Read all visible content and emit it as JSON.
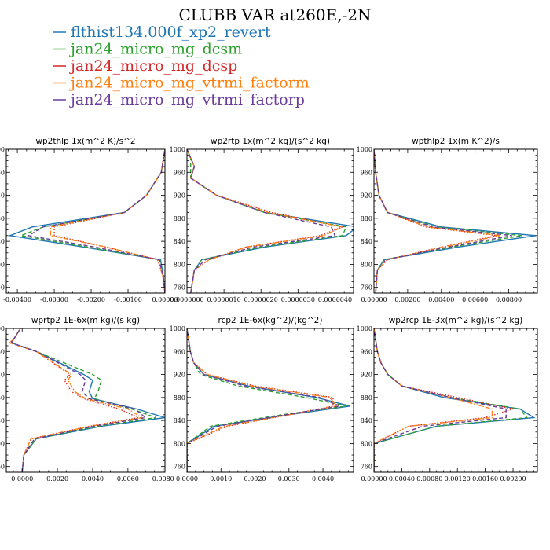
{
  "chart_data": {
    "title": "CLUBB VAR at260E,-2N",
    "legend": [
      {
        "name": "flthist134.000f_xp2_revert",
        "color": "#1f77b4",
        "dash": "solid"
      },
      {
        "name": "jan24_micro_mg_dcsm",
        "color": "#2ca02c",
        "dash": "dash"
      },
      {
        "name": "jan24_micro_mg_dcsp",
        "color": "#d62728",
        "dash": "dot"
      },
      {
        "name": "jan24_micro_mg_vtrmi_factorm",
        "color": "#ff7f0e",
        "dash": "dashdot"
      },
      {
        "name": "jan24_micro_mg_vtrmi_factorp",
        "color": "#6a3d9a",
        "dash": "dash"
      }
    ],
    "panels": [
      {
        "title": "wp2thlp  1x(m^2 K)/s^2",
        "type": "line",
        "xlim": [
          -0.0043,
          0.0
        ],
        "ylim": [
          1000,
          750
        ],
        "xticks": [
          -0.004,
          -0.003,
          -0.002,
          -0.001,
          0.0
        ],
        "xtick_labels": [
          "-0.00400",
          "-0.00300",
          "-0.00200",
          "-0.00100",
          "0.00000"
        ],
        "yticks": [
          760,
          800,
          840,
          880,
          920,
          960,
          1000
        ],
        "levels": [
          750,
          780,
          808,
          830,
          850,
          865,
          890,
          920,
          960,
          1000
        ],
        "series": [
          {
            "name": "flthist134.000f_xp2_revert",
            "values": [
              -0.0,
              -5e-05,
              -0.00012,
              -0.0022,
              -0.0042,
              -0.0036,
              -0.0011,
              -0.0005,
              -0.0001,
              0.0
            ]
          },
          {
            "name": "jan24_micro_mg_dcsm",
            "values": [
              -0.0,
              -5e-05,
              -0.00014,
              -0.0021,
              -0.0039,
              -0.0033,
              -0.0011,
              -0.0005,
              -0.0001,
              0.0
            ]
          },
          {
            "name": "jan24_micro_mg_dcsp",
            "values": [
              -0.0,
              -6e-05,
              -0.0002,
              -0.0016,
              -0.003,
              -0.003,
              -0.0011,
              -0.0005,
              -0.0001,
              0.0
            ]
          },
          {
            "name": "jan24_micro_mg_vtrmi_factorm",
            "values": [
              -0.0,
              -6e-05,
              -0.00019,
              -0.0016,
              -0.0031,
              -0.0031,
              -0.0011,
              -0.0005,
              -0.0001,
              0.0
            ]
          },
          {
            "name": "jan24_micro_mg_vtrmi_factorp",
            "values": [
              -0.0,
              -5e-05,
              -0.00016,
              -0.0019,
              -0.0037,
              -0.0033,
              -0.0011,
              -0.0005,
              -0.0001,
              0.0
            ]
          }
        ]
      },
      {
        "title": "wp2rtp  1x(m^2 kg)/(s^2 kg)",
        "type": "line",
        "xlim": [
          0.0,
          4.5e-06
        ],
        "ylim": [
          1000,
          750
        ],
        "xticks": [
          0.0,
          1e-06,
          2e-06,
          3e-06,
          4e-06
        ],
        "xtick_labels": [
          "0.0000000",
          "0.0000010",
          "0.0000020",
          "0.0000030",
          "0.0000040"
        ],
        "yticks": [
          760,
          800,
          840,
          880,
          920,
          960,
          1000
        ],
        "levels": [
          750,
          790,
          808,
          830,
          850,
          865,
          890,
          920,
          950,
          970,
          985,
          1000
        ],
        "series": [
          {
            "name": "flthist134.000f_xp2_revert",
            "values": [
              1e-07,
              2e-07,
              4e-07,
              2.1e-06,
              4.3e-06,
              4.6e-06,
              2.1e-06,
              8e-07,
              1e-07,
              2e-07,
              1e-07,
              0.0
            ]
          },
          {
            "name": "jan24_micro_mg_dcsm",
            "values": [
              1e-07,
              2e-07,
              4e-07,
              2e-06,
              4.2e-06,
              4.3e-06,
              2.1e-06,
              8e-07,
              1e-07,
              1e-07,
              1e-07,
              0.0
            ]
          },
          {
            "name": "jan24_micro_mg_dcsp",
            "values": [
              1e-07,
              2e-07,
              6e-07,
              1.6e-06,
              3.6e-06,
              4.2e-06,
              2.3e-06,
              8e-07,
              1e-07,
              2e-07,
              1e-07,
              0.0
            ]
          },
          {
            "name": "jan24_micro_mg_vtrmi_factorm",
            "values": [
              1e-07,
              2e-07,
              6e-07,
              1.6e-06,
              3.7e-06,
              4.2e-06,
              2.2e-06,
              8e-07,
              1e-07,
              2e-07,
              1e-07,
              0.0
            ]
          },
          {
            "name": "jan24_micro_mg_vtrmi_factorp",
            "values": [
              1e-07,
              2e-07,
              5e-07,
              1.8e-06,
              4e-06,
              3.9e-06,
              2.1e-06,
              8e-07,
              1e-07,
              2e-07,
              1e-07,
              0.0
            ]
          }
        ]
      },
      {
        "title": "wpthlp2  1x(m K^2)/s",
        "type": "line",
        "xlim": [
          0.0,
          0.0097
        ],
        "ylim": [
          1000,
          750
        ],
        "xticks": [
          0.0,
          0.002,
          0.004,
          0.006,
          0.008
        ],
        "xtick_labels": [
          "0.00000",
          "0.00200",
          "0.00400",
          "0.00600",
          "0.00800"
        ],
        "yticks": [
          760,
          800,
          840,
          880,
          920,
          960,
          1000
        ],
        "levels": [
          750,
          790,
          808,
          830,
          850,
          865,
          890,
          920,
          960,
          1000
        ],
        "series": [
          {
            "name": "flthist134.000f_xp2_revert",
            "values": [
              0.0001,
              0.0002,
              0.0006,
              0.005,
              0.0096,
              0.004,
              0.0008,
              0.0003,
              0.0001,
              0.0
            ]
          },
          {
            "name": "jan24_micro_mg_dcsm",
            "values": [
              0.0001,
              0.0002,
              0.0006,
              0.0046,
              0.0088,
              0.0037,
              0.0008,
              0.0003,
              0.0001,
              0.0
            ]
          },
          {
            "name": "jan24_micro_mg_dcsp",
            "values": [
              0.0001,
              0.0002,
              0.0008,
              0.004,
              0.0073,
              0.0031,
              0.0008,
              0.0003,
              0.0001,
              0.0
            ]
          },
          {
            "name": "jan24_micro_mg_vtrmi_factorm",
            "values": [
              0.0001,
              0.0002,
              0.0008,
              0.0041,
              0.0075,
              0.0032,
              0.0008,
              0.0003,
              0.0001,
              0.0
            ]
          },
          {
            "name": "jan24_micro_mg_vtrmi_factorp",
            "values": [
              0.0001,
              0.0002,
              0.0007,
              0.0044,
              0.0082,
              0.0035,
              0.0008,
              0.0003,
              0.0001,
              0.0
            ]
          }
        ]
      },
      {
        "title": "wprtp2  1E-6x(m kg)/(s kg)",
        "type": "line",
        "xlim": [
          -0.0009,
          0.0081
        ],
        "ylim": [
          1000,
          750
        ],
        "xticks": [
          0.0,
          0.002,
          0.004,
          0.006,
          0.008
        ],
        "xtick_labels": [
          "0.0000",
          "0.0020",
          "0.0040",
          "0.0060",
          "0.0080"
        ],
        "yticks": [
          760,
          800,
          840,
          880,
          920,
          960,
          1000
        ],
        "levels": [
          750,
          780,
          808,
          830,
          845,
          860,
          878,
          890,
          910,
          920,
          960,
          975,
          985,
          1000
        ],
        "series": [
          {
            "name": "flthist134.000f_xp2_revert",
            "values": [
              0.0,
              0.0001,
              0.0008,
              0.0045,
              0.0081,
              0.0065,
              0.004,
              0.0038,
              0.004,
              0.0035,
              0.0008,
              -0.0006,
              -0.0004,
              -0.0001
            ]
          },
          {
            "name": "jan24_micro_mg_dcsm",
            "values": [
              0.0,
              0.0001,
              0.0008,
              0.0043,
              0.0076,
              0.0062,
              0.0041,
              0.0043,
              0.0045,
              0.004,
              0.0008,
              -0.0006,
              -0.0004,
              -0.0001
            ]
          },
          {
            "name": "jan24_micro_mg_dcsp",
            "values": [
              0.0,
              0.0001,
              0.0005,
              0.0038,
              0.0066,
              0.0055,
              0.0035,
              0.0028,
              0.0024,
              0.0027,
              0.0008,
              -0.0007,
              -0.0004,
              -0.0001
            ]
          },
          {
            "name": "jan24_micro_mg_vtrmi_factorm",
            "values": [
              0.0,
              0.0001,
              0.0005,
              0.0039,
              0.0068,
              0.006,
              0.0036,
              0.003,
              0.0026,
              0.0028,
              0.0008,
              -0.0007,
              -0.0004,
              -0.0001
            ]
          },
          {
            "name": "jan24_micro_mg_vtrmi_factorp",
            "values": [
              0.0,
              0.0001,
              0.0007,
              0.0041,
              0.007,
              0.0064,
              0.0038,
              0.0034,
              0.0036,
              0.0033,
              0.0008,
              -0.0006,
              -0.0004,
              -0.0001
            ]
          }
        ]
      },
      {
        "title": "rcp2  1E-6x(kg^2)/(kg^2)",
        "type": "line",
        "xlim": [
          0.0,
          0.0049
        ],
        "ylim": [
          1000,
          750
        ],
        "xticks": [
          0.0,
          0.001,
          0.002,
          0.003,
          0.004
        ],
        "xtick_labels": [
          "0.0000",
          "0.0010",
          "0.0020",
          "0.0030",
          "0.0040"
        ],
        "yticks": [
          760,
          800,
          840,
          880,
          920,
          960,
          1000
        ],
        "levels": [
          750,
          800,
          830,
          850,
          865,
          880,
          900,
          920,
          940,
          960,
          1000
        ],
        "series": [
          {
            "name": "flthist134.000f_xp2_revert",
            "values": [
              0.0,
              0.0,
              0.0008,
              0.003,
              0.0048,
              0.0038,
              0.0018,
              0.0005,
              0.0002,
              0.0001,
              0.0
            ]
          },
          {
            "name": "jan24_micro_mg_dcsm",
            "values": [
              0.0,
              0.0,
              0.0007,
              0.0028,
              0.0047,
              0.0035,
              0.0015,
              0.0004,
              0.0002,
              0.0001,
              0.0
            ]
          },
          {
            "name": "jan24_micro_mg_dcsp",
            "values": [
              0.0,
              0.0,
              0.0012,
              0.003,
              0.0043,
              0.0043,
              0.002,
              0.0006,
              0.0002,
              0.0001,
              0.0
            ]
          },
          {
            "name": "jan24_micro_mg_vtrmi_factorm",
            "values": [
              0.0,
              0.0,
              0.0011,
              0.003,
              0.0044,
              0.0042,
              0.0019,
              0.0006,
              0.0002,
              0.0001,
              0.0
            ]
          },
          {
            "name": "jan24_micro_mg_vtrmi_factorp",
            "values": [
              0.0,
              0.0,
              0.0009,
              0.0029,
              0.0045,
              0.0039,
              0.0017,
              0.0005,
              0.0002,
              0.0001,
              0.0
            ]
          }
        ]
      },
      {
        "title": "wp2rcp  1E-3x(m^2 kg)/(s^2 kg)",
        "type": "line",
        "xlim": [
          0.0,
          0.00235
        ],
        "ylim": [
          1000,
          750
        ],
        "xticks": [
          0.0,
          0.0004,
          0.0008,
          0.0012,
          0.0016,
          0.002
        ],
        "xtick_labels": [
          "0.00000",
          "0.00040",
          "0.00080",
          "0.00120",
          "0.00160",
          "0.00200"
        ],
        "yticks": [
          760,
          800,
          840,
          880,
          920,
          960,
          1000
        ],
        "levels": [
          750,
          800,
          830,
          845,
          860,
          880,
          900,
          920,
          940,
          960,
          1000
        ],
        "series": [
          {
            "name": "flthist134.000f_xp2_revert",
            "values": [
              0.0,
              0.0,
              0.0009,
              0.0023,
              0.0021,
              0.001,
              0.0004,
              0.0002,
              0.0001,
              5e-05,
              0.0
            ]
          },
          {
            "name": "jan24_micro_mg_dcsm",
            "values": [
              0.0,
              0.0,
              0.0009,
              0.0022,
              0.0021,
              0.0011,
              0.0004,
              0.0002,
              0.0001,
              5e-05,
              0.0
            ]
          },
          {
            "name": "jan24_micro_mg_dcsp",
            "values": [
              0.0,
              0.0,
              0.0005,
              0.0016,
              0.002,
              0.0012,
              0.0004,
              0.0002,
              0.0001,
              5e-05,
              0.0
            ]
          },
          {
            "name": "jan24_micro_mg_vtrmi_factorm",
            "values": [
              0.0,
              0.0,
              0.0005,
              0.0017,
              0.0017,
              0.0011,
              0.0004,
              0.0002,
              0.0001,
              5e-05,
              0.0
            ]
          },
          {
            "name": "jan24_micro_mg_vtrmi_factorp",
            "values": [
              0.0,
              0.0,
              0.0007,
              0.0019,
              0.0019,
              0.0011,
              0.0004,
              0.0002,
              0.0001,
              5e-05,
              0.0
            ]
          }
        ]
      }
    ]
  }
}
